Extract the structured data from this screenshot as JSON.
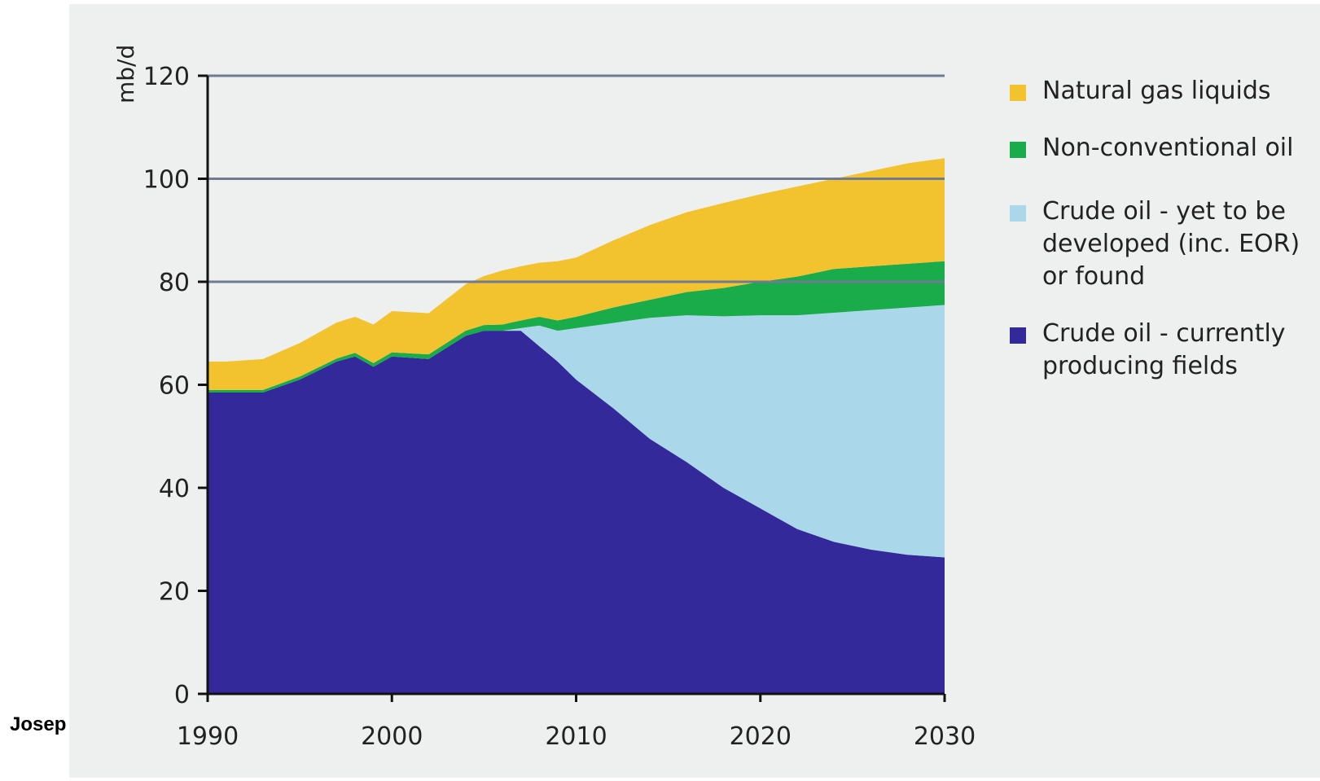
{
  "author_fragment": "Josep",
  "chart_data": {
    "type": "area",
    "stacked": true,
    "title": "",
    "xlabel": "",
    "ylabel": "mb/d",
    "xlim": [
      1990,
      2030
    ],
    "ylim": [
      0,
      120
    ],
    "x_ticks": [
      1990,
      2000,
      2010,
      2020,
      2030
    ],
    "y_ticks": [
      0,
      20,
      40,
      60,
      80,
      100,
      120
    ],
    "gridlines": [
      80,
      100,
      120
    ],
    "legend_position": "right",
    "x": [
      1990,
      1991,
      1993,
      1995,
      1997,
      1998,
      1999,
      2000,
      2002,
      2004,
      2005,
      2006,
      2007,
      2008,
      2009,
      2010,
      2012,
      2014,
      2016,
      2018,
      2020,
      2022,
      2024,
      2026,
      2028,
      2030
    ],
    "series": [
      {
        "name": "Crude oil - currently producing fields",
        "color": "#34299a",
        "values": [
          58.5,
          58.5,
          58.5,
          61,
          64.5,
          65.5,
          63.5,
          65.5,
          65,
          69.5,
          70.5,
          70.5,
          70.5,
          67.5,
          64.5,
          61,
          55.5,
          49.5,
          45,
          40,
          36,
          32,
          29.5,
          28,
          27,
          26.5
        ]
      },
      {
        "name": "Crude oil - yet to be\ndeveloped (inc. EOR)\nor found",
        "color": "#aad8ea",
        "values": [
          0,
          0,
          0,
          0,
          0,
          0,
          0,
          0,
          0,
          0,
          0,
          0,
          0.5,
          4,
          6,
          10,
          16.5,
          23.5,
          28.5,
          33.3,
          37.5,
          41.5,
          44.5,
          46.5,
          48,
          49
        ]
      },
      {
        "name": "Non-conventional oil",
        "color": "#1aab4a",
        "values": [
          0.5,
          0.5,
          0.5,
          0.6,
          0.6,
          0.7,
          0.7,
          0.8,
          0.9,
          1,
          1.1,
          1.2,
          1.5,
          1.7,
          2,
          2.2,
          3,
          3.5,
          4.5,
          5.5,
          6.5,
          7.5,
          8.5,
          8.5,
          8.5,
          8.5
        ]
      },
      {
        "name": "Natural gas liquids",
        "color": "#f2c22f",
        "values": [
          5.5,
          5.5,
          6,
          6.5,
          7,
          7,
          7.5,
          8,
          8,
          9,
          9.5,
          10.5,
          10.5,
          10.5,
          11.5,
          11.5,
          13,
          14.5,
          15.5,
          16.5,
          17,
          17.5,
          17.5,
          18.5,
          19.5,
          20
        ]
      }
    ]
  }
}
